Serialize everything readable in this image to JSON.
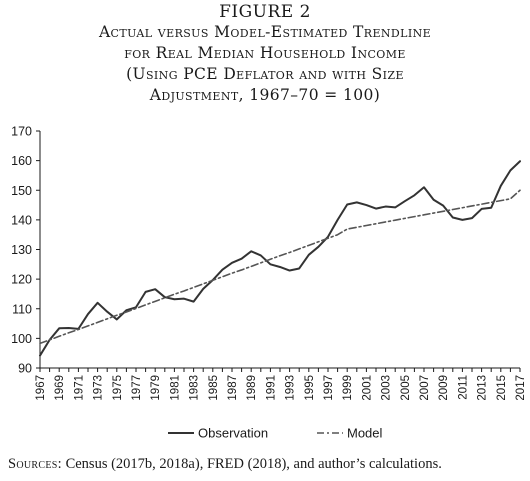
{
  "figure": {
    "label": "FIGURE 2",
    "title_lines": [
      "Actual versus Model-Estimated Trendline",
      "for Real Median Household Income",
      "(Using PCE Deflator and with Size",
      "Adjustment, 1967–70 = 100)"
    ]
  },
  "source": {
    "lead": "Sources:",
    "text": " Census (2017b, 2018a), FRED (2018), and author’s calculations."
  },
  "chart_data": {
    "type": "line",
    "x": [
      1967,
      1968,
      1969,
      1970,
      1971,
      1972,
      1973,
      1974,
      1975,
      1976,
      1977,
      1978,
      1979,
      1980,
      1981,
      1982,
      1983,
      1984,
      1985,
      1986,
      1987,
      1988,
      1989,
      1990,
      1991,
      1992,
      1993,
      1994,
      1995,
      1996,
      1997,
      1998,
      1999,
      2000,
      2001,
      2002,
      2003,
      2004,
      2005,
      2006,
      2007,
      2008,
      2009,
      2010,
      2011,
      2012,
      2013,
      2014,
      2015,
      2016,
      2017
    ],
    "x_tick_labels": [
      "1967",
      "1969",
      "1971",
      "1973",
      "1975",
      "1977",
      "1979",
      "1981",
      "1983",
      "1985",
      "1987",
      "1989",
      "1991",
      "1993",
      "1995",
      "1997",
      "1999",
      "2001",
      "2003",
      "2005",
      "2007",
      "2009",
      "2011",
      "2013",
      "2015",
      "2017"
    ],
    "ylim": [
      90,
      170
    ],
    "y_ticks": [
      90,
      100,
      110,
      120,
      130,
      140,
      150,
      160,
      170
    ],
    "grid": false,
    "legend_position": "bottom",
    "series": [
      {
        "name": "Observation",
        "style": "solid",
        "color": "#333333",
        "values": [
          94.2,
          99.5,
          103.4,
          103.5,
          103.2,
          108.2,
          112.0,
          109.0,
          106.4,
          109.5,
          110.5,
          115.7,
          116.6,
          113.9,
          113.2,
          113.4,
          112.4,
          116.7,
          119.7,
          123.2,
          125.5,
          126.9,
          129.4,
          128.0,
          125.0,
          124.1,
          122.9,
          123.6,
          128.2,
          130.9,
          134.3,
          140.0,
          145.2,
          145.9,
          145.0,
          143.8,
          144.5,
          144.2,
          146.3,
          148.3,
          151.0,
          146.8,
          144.8,
          140.8,
          140.0,
          140.6,
          143.7,
          144.1,
          151.5,
          156.7,
          159.8
        ]
      },
      {
        "name": "Model",
        "style": "dashdot",
        "color": "#555555",
        "values": [
          98.3,
          99.5,
          100.7,
          101.9,
          103.0,
          104.2,
          105.4,
          106.6,
          107.8,
          108.9,
          110.1,
          111.3,
          112.5,
          113.7,
          114.9,
          116.0,
          117.2,
          118.4,
          119.6,
          120.8,
          122.0,
          123.1,
          124.3,
          125.5,
          126.7,
          127.9,
          129.0,
          130.2,
          131.4,
          132.6,
          133.8,
          135.0,
          136.9,
          137.5,
          138.1,
          138.7,
          139.3,
          139.9,
          140.5,
          141.1,
          141.7,
          142.3,
          142.9,
          143.5,
          144.1,
          144.7,
          145.3,
          145.9,
          146.5,
          147.1,
          150.0
        ]
      }
    ]
  }
}
